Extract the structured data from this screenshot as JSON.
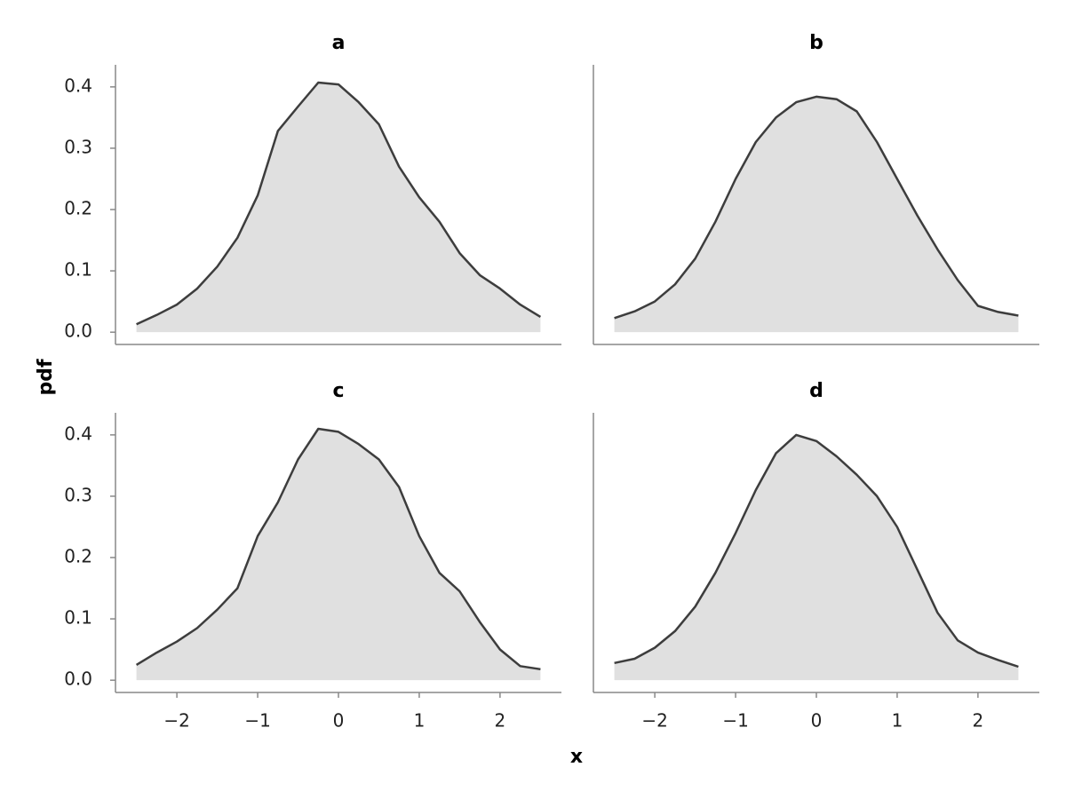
{
  "xlabel": "x",
  "ylabel": "pdf",
  "chart_data": [
    {
      "type": "area",
      "title": "a",
      "color": "#3d3d3d",
      "fill_color": "#e0e0e0",
      "x": [
        -2.5,
        -2.25,
        -2.0,
        -1.75,
        -1.5,
        -1.25,
        -1.0,
        -0.75,
        -0.5,
        -0.25,
        0,
        0.25,
        0.5,
        0.75,
        1.0,
        1.25,
        1.5,
        1.75,
        2.0,
        2.25,
        2.5
      ],
      "values": [
        0.013,
        0.028,
        0.045,
        0.071,
        0.107,
        0.154,
        0.223,
        0.328,
        0.368,
        0.407,
        0.404,
        0.375,
        0.339,
        0.27,
        0.22,
        0.18,
        0.129,
        0.093,
        0.071,
        0.045,
        0.025
      ],
      "xlim": [
        -2.76,
        2.76
      ],
      "ylim": [
        -0.02,
        0.436
      ],
      "yticks": [
        {
          "value": 0,
          "label": "0.0"
        },
        0.1,
        0.2,
        0.3,
        0.4
      ]
    },
    {
      "type": "area",
      "title": "b",
      "color": "#3d3d3d",
      "fill_color": "#e0e0e0",
      "x": [
        -2.5,
        -2.25,
        -2.0,
        -1.75,
        -1.5,
        -1.25,
        -1.0,
        -0.75,
        -0.5,
        -0.25,
        0,
        0.25,
        0.5,
        0.75,
        1.0,
        1.25,
        1.5,
        1.75,
        2.0,
        2.25,
        2.5
      ],
      "values": [
        0.023,
        0.034,
        0.05,
        0.078,
        0.12,
        0.18,
        0.25,
        0.31,
        0.35,
        0.375,
        0.384,
        0.38,
        0.36,
        0.31,
        0.25,
        0.19,
        0.135,
        0.085,
        0.043,
        0.033,
        0.027
      ],
      "xlim": [
        -2.76,
        2.76
      ],
      "ylim": [
        -0.02,
        0.436
      ]
    },
    {
      "type": "area",
      "title": "c",
      "color": "#3d3d3d",
      "fill_color": "#e0e0e0",
      "x": [
        -2.5,
        -2.25,
        -2.0,
        -1.75,
        -1.5,
        -1.25,
        -1.0,
        -0.75,
        -0.5,
        -0.25,
        0,
        0.25,
        0.5,
        0.75,
        1.0,
        1.25,
        1.5,
        1.75,
        2.0,
        2.25,
        2.5
      ],
      "values": [
        0.025,
        0.045,
        0.063,
        0.085,
        0.115,
        0.15,
        0.235,
        0.29,
        0.36,
        0.41,
        0.405,
        0.385,
        0.36,
        0.315,
        0.235,
        0.175,
        0.145,
        0.095,
        0.05,
        0.023,
        0.018
      ],
      "xlim": [
        -2.76,
        2.76
      ],
      "ylim": [
        -0.02,
        0.436
      ],
      "xticks": [
        {
          "value": -2,
          "label": "−2"
        },
        {
          "value": -1,
          "label": "−1"
        },
        0,
        1,
        2
      ],
      "yticks": [
        {
          "value": 0,
          "label": "0.0"
        },
        0.1,
        0.2,
        0.3,
        0.4
      ]
    },
    {
      "type": "area",
      "title": "d",
      "color": "#3d3d3d",
      "fill_color": "#e0e0e0",
      "x": [
        -2.5,
        -2.25,
        -2.0,
        -1.75,
        -1.5,
        -1.25,
        -1.0,
        -0.75,
        -0.5,
        -0.25,
        0,
        0.25,
        0.5,
        0.75,
        1.0,
        1.25,
        1.5,
        1.75,
        2.0,
        2.25,
        2.5
      ],
      "values": [
        0.028,
        0.035,
        0.053,
        0.08,
        0.12,
        0.175,
        0.24,
        0.31,
        0.37,
        0.4,
        0.39,
        0.365,
        0.335,
        0.3,
        0.25,
        0.18,
        0.11,
        0.065,
        0.045,
        0.033,
        0.022
      ],
      "xlim": [
        -2.76,
        2.76
      ],
      "ylim": [
        -0.02,
        0.436
      ],
      "xticks": [
        {
          "value": -2,
          "label": "−2"
        },
        {
          "value": -1,
          "label": "−1"
        },
        0,
        1,
        2
      ]
    }
  ]
}
